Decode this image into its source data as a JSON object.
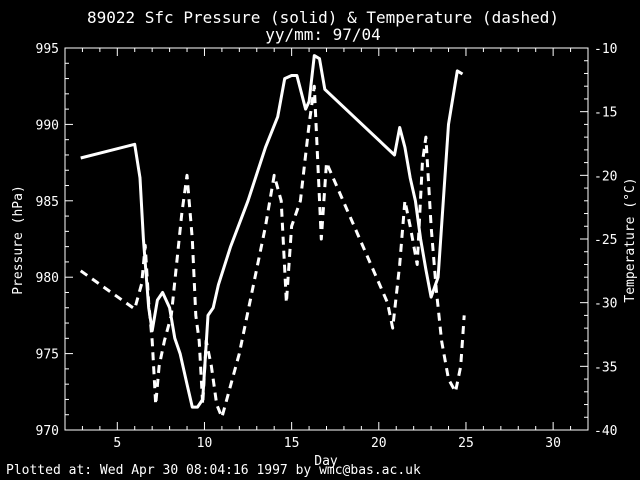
{
  "chart_data": {
    "type": "line",
    "title": "89022 Sfc Pressure (solid) & Temperature (dashed)",
    "subtitle": "yy/mm: 97/04",
    "xlabel": "Day",
    "ylabel_left": "Pressure (hPa)",
    "ylabel_right": "Temperature (°C)",
    "xlim": [
      2,
      32
    ],
    "ylim_left": [
      970,
      995
    ],
    "ylim_right": [
      -40,
      -10
    ],
    "x_ticks": [
      "5",
      "10",
      "15",
      "20",
      "25",
      "30"
    ],
    "y_ticks_left": [
      "970",
      "975",
      "980",
      "985",
      "990",
      "995"
    ],
    "y_ticks_right": [
      "-10",
      "-15",
      "-20",
      "-25",
      "-30",
      "-35",
      "-40"
    ],
    "series": [
      {
        "name": "Sfc Pressure",
        "axis": "left",
        "style": "solid",
        "points": [
          [
            2.9,
            987.8
          ],
          [
            6.0,
            988.7
          ],
          [
            6.3,
            986.5
          ],
          [
            6.5,
            982.5
          ],
          [
            6.8,
            978.0
          ],
          [
            7.0,
            976.5
          ],
          [
            7.3,
            978.5
          ],
          [
            7.6,
            979.0
          ],
          [
            8.0,
            978.0
          ],
          [
            8.3,
            976.0
          ],
          [
            8.6,
            975.0
          ],
          [
            9.0,
            973.0
          ],
          [
            9.3,
            971.5
          ],
          [
            9.6,
            971.5
          ],
          [
            9.9,
            972.0
          ],
          [
            10.2,
            977.5
          ],
          [
            10.5,
            978.0
          ],
          [
            10.8,
            979.5
          ],
          [
            11.5,
            982.0
          ],
          [
            12.5,
            985.0
          ],
          [
            13.5,
            988.5
          ],
          [
            14.2,
            990.5
          ],
          [
            14.6,
            993.0
          ],
          [
            15.0,
            993.2
          ],
          [
            15.3,
            993.2
          ],
          [
            15.8,
            991.0
          ],
          [
            16.0,
            991.5
          ],
          [
            16.3,
            994.5
          ],
          [
            16.6,
            994.3
          ],
          [
            16.9,
            992.3
          ],
          [
            20.9,
            988.0
          ],
          [
            21.2,
            989.8
          ],
          [
            21.5,
            988.5
          ],
          [
            21.8,
            986.5
          ],
          [
            22.1,
            985.0
          ],
          [
            22.4,
            982.5
          ],
          [
            22.7,
            980.5
          ],
          [
            23.0,
            978.7
          ],
          [
            23.4,
            980.0
          ],
          [
            23.7,
            985.0
          ],
          [
            24.0,
            990.0
          ],
          [
            24.5,
            993.5
          ],
          [
            24.8,
            993.3
          ]
        ]
      },
      {
        "name": "Temperature",
        "axis": "right",
        "style": "dashed",
        "points": [
          [
            2.9,
            -27.5
          ],
          [
            6.0,
            -30.5
          ],
          [
            6.4,
            -28.5
          ],
          [
            6.6,
            -25.5
          ],
          [
            6.8,
            -30.0
          ],
          [
            7.0,
            -33.0
          ],
          [
            7.2,
            -38.0
          ],
          [
            7.4,
            -35.0
          ],
          [
            7.7,
            -33.0
          ],
          [
            8.1,
            -31.0
          ],
          [
            8.7,
            -23.0
          ],
          [
            9.0,
            -20.0
          ],
          [
            9.3,
            -25.0
          ],
          [
            9.5,
            -31.0
          ],
          [
            9.7,
            -33.0
          ],
          [
            9.9,
            -38.0
          ],
          [
            10.1,
            -33.0
          ],
          [
            10.4,
            -35.0
          ],
          [
            10.7,
            -38.0
          ],
          [
            11.0,
            -39.0
          ],
          [
            12.0,
            -34.0
          ],
          [
            13.5,
            -24.0
          ],
          [
            14.0,
            -20.0
          ],
          [
            14.4,
            -22.0
          ],
          [
            14.7,
            -30.0
          ],
          [
            15.0,
            -24.0
          ],
          [
            15.5,
            -22.0
          ],
          [
            16.0,
            -16.0
          ],
          [
            16.3,
            -13.0
          ],
          [
            16.7,
            -25.0
          ],
          [
            17.0,
            -19.0
          ],
          [
            20.5,
            -30.0
          ],
          [
            20.8,
            -32.0
          ],
          [
            21.2,
            -27.0
          ],
          [
            21.5,
            -22.0
          ],
          [
            21.8,
            -24.0
          ],
          [
            22.2,
            -27.0
          ],
          [
            22.5,
            -19.0
          ],
          [
            22.7,
            -17.0
          ],
          [
            23.0,
            -24.0
          ],
          [
            23.3,
            -29.0
          ],
          [
            23.6,
            -33.0
          ],
          [
            24.0,
            -36.0
          ],
          [
            24.4,
            -37.0
          ],
          [
            24.7,
            -35.0
          ],
          [
            24.9,
            -31.0
          ]
        ]
      }
    ]
  },
  "footer": "Plotted at: Wed Apr 30 08:04:16 1997 by wmc@bas.ac.uk",
  "colors": {
    "background": "#000000",
    "foreground": "#ffffff"
  }
}
